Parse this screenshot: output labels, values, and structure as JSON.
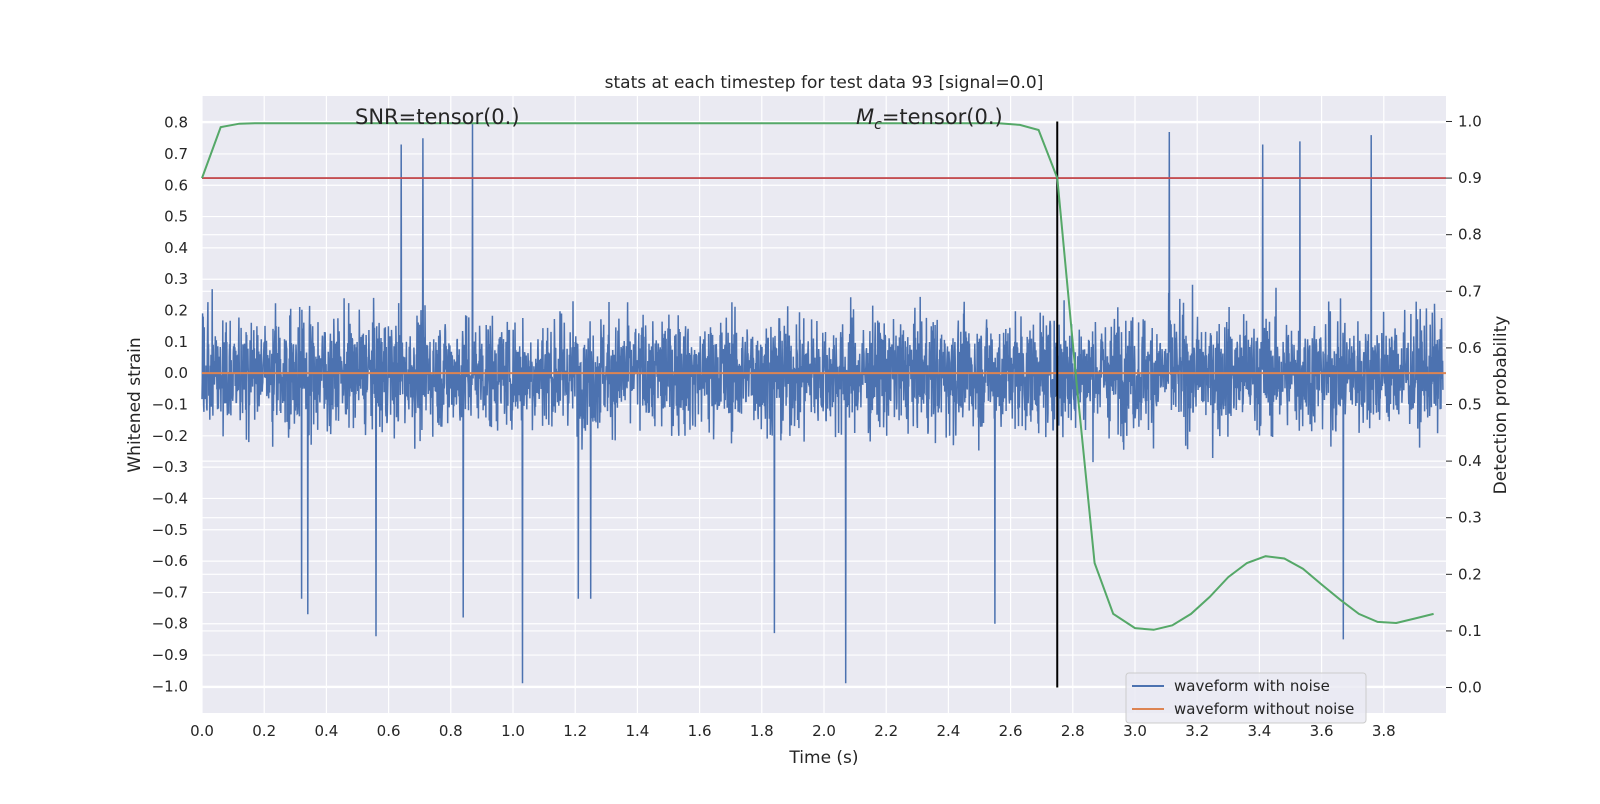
{
  "chart_data": {
    "type": "line",
    "title": "stats at each timestep for test data 93 [signal=0.0]",
    "xlabel": "Time (s)",
    "ylabel": "Whitened strain",
    "y2label": "Detection probability",
    "xlim": [
      0.0,
      4.0
    ],
    "ylim": [
      -1.085,
      0.885
    ],
    "y2lim": [
      -0.045,
      1.045
    ],
    "xticks": [
      0.0,
      0.2,
      0.4,
      0.6,
      0.8,
      1.0,
      1.2,
      1.4,
      1.6,
      1.8,
      2.0,
      2.2,
      2.4,
      2.6,
      2.8,
      3.0,
      3.2,
      3.4,
      3.6,
      3.8
    ],
    "xtick_labels": [
      "0.0",
      "0.2",
      "0.4",
      "0.6",
      "0.8",
      "1.0",
      "1.2",
      "1.4",
      "1.6",
      "1.8",
      "2.0",
      "2.2",
      "2.4",
      "2.6",
      "2.8",
      "3.0",
      "3.2",
      "3.4",
      "3.6",
      "3.8"
    ],
    "yticks": [
      0.8,
      0.7,
      0.6,
      0.5,
      0.4,
      0.3,
      0.2,
      0.1,
      0.0,
      -0.1,
      -0.2,
      -0.3,
      -0.4,
      -0.5,
      -0.6,
      -0.7,
      -0.8,
      -0.9,
      -1.0
    ],
    "ytick_labels": [
      "0.8",
      "0.7",
      "0.6",
      "0.5",
      "0.4",
      "0.3",
      "0.2",
      "0.1",
      "0.0",
      "−0.1",
      "−0.2",
      "−0.3",
      "−0.4",
      "−0.5",
      "−0.6",
      "−0.7",
      "−0.8",
      "−0.9",
      "−1.0"
    ],
    "y2ticks": [
      1.0,
      0.9,
      0.8,
      0.7,
      0.6,
      0.5,
      0.4,
      0.3,
      0.2,
      0.1,
      0.0
    ],
    "y2tick_labels": [
      "1.0",
      "0.9",
      "0.8",
      "0.7",
      "0.6",
      "0.5",
      "0.4",
      "0.3",
      "0.2",
      "0.1",
      "0.0"
    ],
    "grid": true,
    "legend_position": "lower right",
    "legend": [
      "waveform with noise",
      "waveform without noise"
    ],
    "annotations": {
      "snr_text": "SNR=tensor(0.)",
      "mc_symbol": "M",
      "mc_subscript": "c",
      "mc_value": "=tensor(0.)"
    },
    "noise_series": {
      "name": "waveform with noise",
      "color": "#4c72b0",
      "x_start": 0.0,
      "x_end": 3.99,
      "amplitude_typical": 0.45,
      "peaks": [
        {
          "x": 0.32,
          "y": -0.72
        },
        {
          "x": 0.34,
          "y": -0.77
        },
        {
          "x": 0.56,
          "y": -0.84
        },
        {
          "x": 0.64,
          "y": 0.73
        },
        {
          "x": 0.71,
          "y": 0.75
        },
        {
          "x": 0.84,
          "y": -0.78
        },
        {
          "x": 0.87,
          "y": 0.8
        },
        {
          "x": 1.03,
          "y": -0.99
        },
        {
          "x": 1.21,
          "y": -0.72
        },
        {
          "x": 1.25,
          "y": -0.72
        },
        {
          "x": 1.84,
          "y": -0.83
        },
        {
          "x": 2.07,
          "y": -0.99
        },
        {
          "x": 2.55,
          "y": -0.8
        },
        {
          "x": 3.11,
          "y": 0.77
        },
        {
          "x": 3.41,
          "y": 0.73
        },
        {
          "x": 3.53,
          "y": 0.74
        },
        {
          "x": 3.67,
          "y": -0.85
        },
        {
          "x": 3.76,
          "y": 0.76
        }
      ]
    },
    "clean_series": {
      "name": "waveform without noise",
      "color": "#dd8452",
      "x": [
        0.0,
        4.0
      ],
      "y": [
        0.0,
        0.0
      ]
    },
    "probability_series": {
      "color": "#55a868",
      "x": [
        0.0,
        0.06,
        0.12,
        0.18,
        0.3,
        0.6,
        1.0,
        1.5,
        2.0,
        2.5,
        2.56,
        2.63,
        2.69,
        2.75,
        2.81,
        2.87,
        2.93,
        3.0,
        3.06,
        3.12,
        3.18,
        3.24,
        3.3,
        3.36,
        3.42,
        3.48,
        3.54,
        3.6,
        3.66,
        3.72,
        3.78,
        3.84,
        3.9,
        3.96
      ],
      "y": [
        0.9,
        0.99,
        0.996,
        0.997,
        0.997,
        0.997,
        0.997,
        0.997,
        0.997,
        0.997,
        0.997,
        0.994,
        0.985,
        0.9,
        0.55,
        0.22,
        0.13,
        0.105,
        0.102,
        0.11,
        0.13,
        0.16,
        0.195,
        0.22,
        0.232,
        0.228,
        0.21,
        0.182,
        0.155,
        0.13,
        0.116,
        0.114,
        0.122,
        0.13
      ]
    },
    "threshold_line": {
      "color": "#c44e52",
      "y2": 0.9
    },
    "vertical_line": {
      "color": "#000000",
      "x": 2.75,
      "y2_range": [
        0.0,
        1.0
      ]
    }
  }
}
